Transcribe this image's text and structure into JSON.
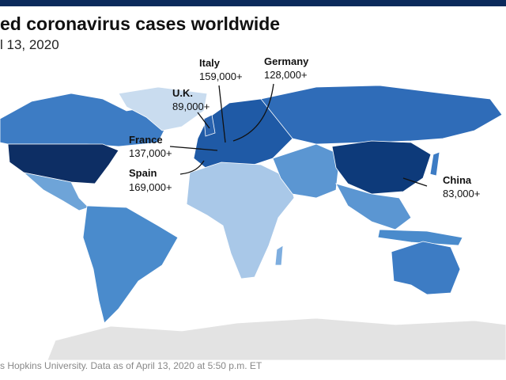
{
  "header": {
    "title": "ed coronavirus cases worldwide",
    "subtitle": "l 13, 2020"
  },
  "callouts": [
    {
      "country": "Italy",
      "cases": "159,000+"
    },
    {
      "country": "Germany",
      "cases": "128,000+"
    },
    {
      "country": "U.K.",
      "cases": "89,000+"
    },
    {
      "country": "France",
      "cases": "137,000+"
    },
    {
      "country": "Spain",
      "cases": "169,000+"
    },
    {
      "country": "China",
      "cases": "83,000+"
    }
  ],
  "footer": {
    "source": "s Hopkins University. Data as of April 13, 2020 at 5:50 p.m. ET"
  }
}
